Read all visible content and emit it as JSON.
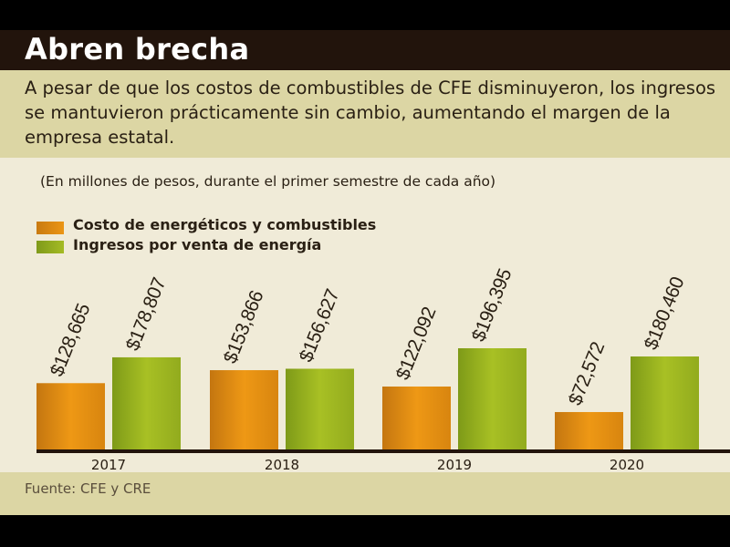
{
  "header": {
    "title": "Abren brecha",
    "subtitle": "A pesar de que los costos de combustibles de CFE disminuyeron, los ingresos se mantuvieron prácticamente sin cambio, aumentando el margen de la empresa estatal."
  },
  "footer": {
    "source": "Fuente: CFE y CRE"
  },
  "chart_data": {
    "type": "bar",
    "title": "Abren brecha",
    "note": "(En millones de pesos, durante el primer semestre de cada año)",
    "categories": [
      "2017",
      "2018",
      "2019",
      "2020"
    ],
    "series": [
      {
        "name": "Costo de energéticos y combustibles",
        "color": "#e8900f",
        "values": [
          128665,
          153866,
          122092,
          72572
        ],
        "labels": [
          "$128,665",
          "$153,866",
          "$122,092",
          "$72,572"
        ]
      },
      {
        "name": "Ingresos por venta de energía",
        "color": "#9bb21e",
        "values": [
          178807,
          156627,
          196395,
          180460
        ],
        "labels": [
          "$178,807",
          "$156,627",
          "$196,395",
          "$180,460"
        ]
      }
    ],
    "ylim": [
      0,
      200000
    ],
    "legend": "top-left",
    "grid": false
  }
}
